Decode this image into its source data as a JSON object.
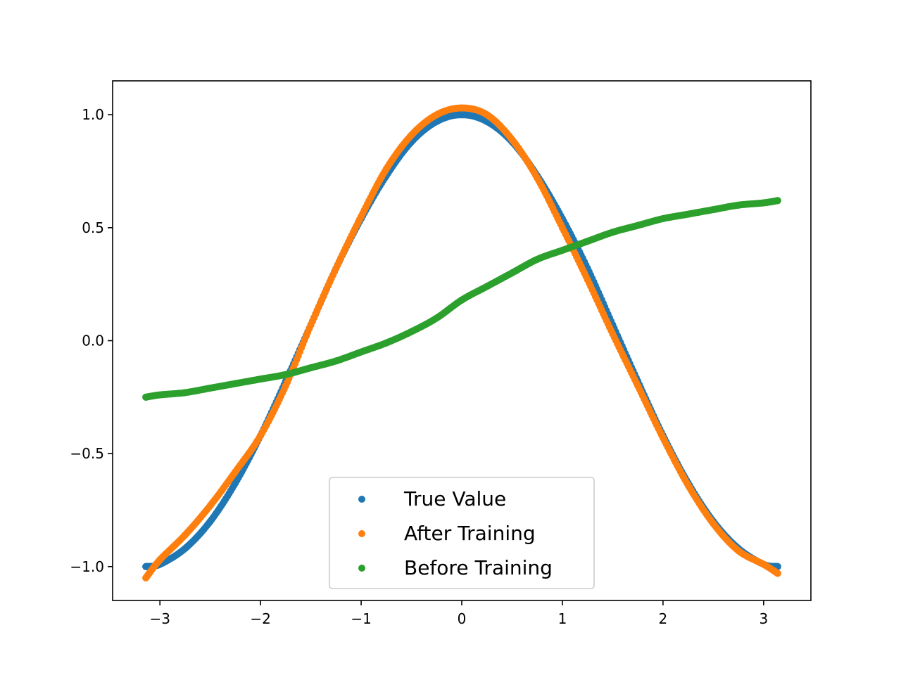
{
  "chart_data": {
    "type": "scatter",
    "title": "",
    "xlabel": "",
    "ylabel": "",
    "xlim": [
      -3.47,
      3.47
    ],
    "ylim": [
      -1.15,
      1.15
    ],
    "x_ticks": [
      -3,
      -2,
      -1,
      0,
      1,
      2,
      3
    ],
    "x_tick_labels": [
      "−3",
      "−2",
      "−1",
      "0",
      "1",
      "2",
      "3"
    ],
    "y_ticks": [
      -1.0,
      -0.5,
      0.0,
      0.5,
      1.0
    ],
    "y_tick_labels": [
      "−1.0",
      "−0.5",
      "0.0",
      "0.5",
      "1.0"
    ],
    "grid": false,
    "legend_position": "bottom-center",
    "series": [
      {
        "name": "True Value",
        "color": "#1f77b4",
        "x": [
          -3.14,
          -3.0,
          -2.75,
          -2.5,
          -2.25,
          -2.0,
          -1.75,
          -1.5,
          -1.25,
          -1.0,
          -0.75,
          -0.5,
          -0.25,
          0.0,
          0.25,
          0.5,
          0.75,
          1.0,
          1.25,
          1.5,
          1.75,
          2.0,
          2.25,
          2.5,
          2.75,
          3.0,
          3.14
        ],
        "y": [
          -1.0,
          -0.99,
          -0.92,
          -0.8,
          -0.63,
          -0.42,
          -0.18,
          0.07,
          0.32,
          0.54,
          0.73,
          0.88,
          0.97,
          1.0,
          0.97,
          0.88,
          0.73,
          0.54,
          0.32,
          0.07,
          -0.18,
          -0.42,
          -0.63,
          -0.8,
          -0.92,
          -0.99,
          -1.0
        ]
      },
      {
        "name": "After Training",
        "color": "#ff7f0e",
        "x": [
          -3.14,
          -3.0,
          -2.75,
          -2.5,
          -2.25,
          -2.0,
          -1.75,
          -1.5,
          -1.25,
          -1.0,
          -0.75,
          -0.5,
          -0.25,
          0.0,
          0.25,
          0.5,
          0.75,
          1.0,
          1.25,
          1.5,
          1.75,
          2.0,
          2.25,
          2.5,
          2.75,
          3.0,
          3.14
        ],
        "y": [
          -1.05,
          -0.97,
          -0.86,
          -0.73,
          -0.58,
          -0.42,
          -0.2,
          0.07,
          0.32,
          0.55,
          0.76,
          0.91,
          1.0,
          1.03,
          1.0,
          0.89,
          0.72,
          0.5,
          0.27,
          0.03,
          -0.2,
          -0.43,
          -0.64,
          -0.81,
          -0.93,
          -0.99,
          -1.03
        ]
      },
      {
        "name": "Before Training",
        "color": "#2ca02c",
        "x": [
          -3.14,
          -3.0,
          -2.75,
          -2.5,
          -2.25,
          -2.0,
          -1.75,
          -1.5,
          -1.25,
          -1.0,
          -0.75,
          -0.5,
          -0.25,
          0.0,
          0.25,
          0.5,
          0.75,
          1.0,
          1.25,
          1.5,
          1.75,
          2.0,
          2.25,
          2.5,
          2.75,
          3.0,
          3.14
        ],
        "y": [
          -0.25,
          -0.24,
          -0.23,
          -0.21,
          -0.19,
          -0.17,
          -0.15,
          -0.12,
          -0.09,
          -0.05,
          -0.01,
          0.04,
          0.1,
          0.18,
          0.24,
          0.3,
          0.36,
          0.4,
          0.44,
          0.48,
          0.51,
          0.54,
          0.56,
          0.58,
          0.6,
          0.61,
          0.62
        ]
      }
    ]
  }
}
